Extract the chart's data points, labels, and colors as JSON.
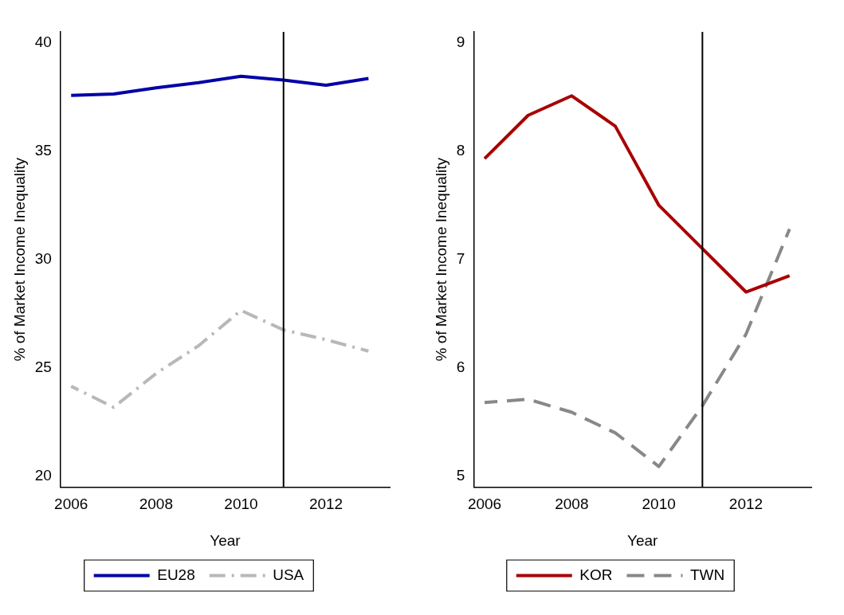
{
  "chart_data": [
    {
      "type": "line",
      "xlabel": "Year",
      "ylabel": "% of Market Income Inequality",
      "x": [
        2006,
        2007,
        2008,
        2009,
        2010,
        2011,
        2012,
        2013
      ],
      "xlim": [
        2005.75,
        2013.5
      ],
      "xticks": [
        2006,
        2008,
        2010,
        2012
      ],
      "ylim": [
        19.5,
        40.5
      ],
      "yticks": [
        20,
        25,
        30,
        35,
        40
      ],
      "grid": false,
      "legend": "bottom",
      "marker": "none",
      "series": [
        {
          "name": "EU28",
          "color": "#0000a8",
          "line_style": "solid",
          "values": [
            37.57,
            37.63,
            37.92,
            38.16,
            38.45,
            38.28,
            38.04,
            38.35
          ]
        },
        {
          "name": "USA",
          "color": "#b8b8b8",
          "line_style": "dashdot",
          "values": [
            24.15,
            23.18,
            24.74,
            26.02,
            27.65,
            26.75,
            26.3,
            25.77
          ]
        }
      ],
      "ref_lines": [
        {
          "axis": "x",
          "value": 2011,
          "color": "#000000"
        }
      ]
    },
    {
      "type": "line",
      "xlabel": "Year",
      "ylabel": "% of Market Income Inequality",
      "x": [
        2006,
        2007,
        2008,
        2009,
        2010,
        2011,
        2012,
        2013
      ],
      "xlim": [
        2005.75,
        2013.5
      ],
      "xticks": [
        2006,
        2008,
        2010,
        2012
      ],
      "ylim": [
        4.9,
        9.1
      ],
      "yticks": [
        5,
        6,
        7,
        8,
        9
      ],
      "grid": false,
      "legend": "bottom",
      "marker": "none",
      "series": [
        {
          "name": "KOR",
          "color": "#a80000",
          "line_style": "solid",
          "values": [
            7.93,
            8.33,
            8.51,
            8.23,
            7.5,
            7.1,
            6.7,
            6.85
          ]
        },
        {
          "name": "TWN",
          "color": "#888888",
          "line_style": "dashed",
          "values": [
            5.68,
            5.71,
            5.59,
            5.4,
            5.09,
            5.65,
            6.31,
            7.28
          ]
        }
      ],
      "ref_lines": [
        {
          "axis": "x",
          "value": 2011,
          "color": "#000000"
        }
      ]
    }
  ]
}
